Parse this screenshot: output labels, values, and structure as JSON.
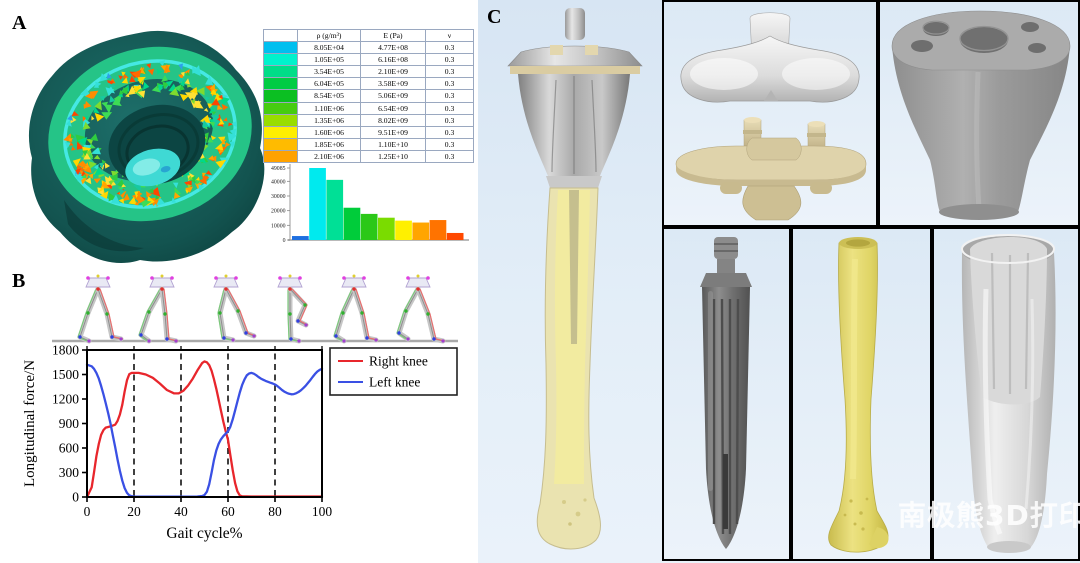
{
  "panels": {
    "a": "A",
    "b": "B",
    "c": "C"
  },
  "material_table": {
    "headers": {
      "swatch": "",
      "density": "ρ (g/m³)",
      "modulus": "E (Pa)",
      "poisson": "ν"
    },
    "rows": [
      {
        "color": "#00BFEF",
        "density": "8.05E+04",
        "modulus": "4.77E+08",
        "poisson": "0.3"
      },
      {
        "color": "#00F2CC",
        "density": "1.05E+05",
        "modulus": "6.16E+08",
        "poisson": "0.3"
      },
      {
        "color": "#00DD88",
        "density": "3.54E+05",
        "modulus": "2.10E+09",
        "poisson": "0.3"
      },
      {
        "color": "#00CC44",
        "density": "6.04E+05",
        "modulus": "3.58E+09",
        "poisson": "0.3"
      },
      {
        "color": "#0BBF22",
        "density": "8.54E+05",
        "modulus": "5.06E+09",
        "poisson": "0.3"
      },
      {
        "color": "#46CC11",
        "density": "1.10E+06",
        "modulus": "6.54E+09",
        "poisson": "0.3"
      },
      {
        "color": "#99DD00",
        "density": "1.35E+06",
        "modulus": "8.02E+09",
        "poisson": "0.3"
      },
      {
        "color": "#FFEE00",
        "density": "1.60E+06",
        "modulus": "9.51E+09",
        "poisson": "0.3"
      },
      {
        "color": "#FFBB00",
        "density": "1.85E+06",
        "modulus": "1.10E+10",
        "poisson": "0.3"
      },
      {
        "color": "#FFA200",
        "density": "2.10E+06",
        "modulus": "1.25E+10",
        "poisson": "0.3"
      }
    ]
  },
  "chart_data": [
    {
      "id": "bone-density-histogram",
      "type": "bar",
      "title": "",
      "xlabel": "",
      "ylabel": "",
      "values": [
        2700,
        49085,
        41000,
        22000,
        17800,
        15200,
        13200,
        11900,
        13600,
        4800
      ],
      "bar_colors": [
        "#1E6FE0",
        "#00EAEE",
        "#00E096",
        "#00CC3A",
        "#2BC818",
        "#7ADC00",
        "#FFF000",
        "#FFA500",
        "#FF7300",
        "#FF4800"
      ],
      "yticks": [
        0,
        10000,
        20000,
        30000,
        40000,
        49085
      ],
      "ylim": [
        0,
        49085
      ],
      "grid": false
    },
    {
      "id": "knee-longitudinal-force",
      "type": "line",
      "title": "",
      "xlabel": "Gait cycle%",
      "ylabel": "Longitudinal force/N",
      "xlim": [
        0,
        100
      ],
      "ylim": [
        0,
        1800
      ],
      "xticks": [
        0,
        20,
        40,
        60,
        80,
        100
      ],
      "yticks": [
        0,
        300,
        600,
        900,
        1200,
        1500,
        1800
      ],
      "dashed_vlines_x": [
        20,
        40,
        60,
        80
      ],
      "legend_position": "top-right",
      "series": [
        {
          "name": "Right knee",
          "color": "#E8262C",
          "points": [
            [
              0,
              0
            ],
            [
              2,
              120
            ],
            [
              3,
              300
            ],
            [
              4,
              500
            ],
            [
              5,
              650
            ],
            [
              6,
              760
            ],
            [
              7,
              820
            ],
            [
              8,
              850
            ],
            [
              10,
              865
            ],
            [
              12,
              885
            ],
            [
              13,
              930
            ],
            [
              14,
              1010
            ],
            [
              15,
              1130
            ],
            [
              16,
              1290
            ],
            [
              17,
              1430
            ],
            [
              18,
              1505
            ],
            [
              19,
              1520
            ],
            [
              22,
              1520
            ],
            [
              25,
              1500
            ],
            [
              28,
              1460
            ],
            [
              31,
              1390
            ],
            [
              34,
              1310
            ],
            [
              37,
              1270
            ],
            [
              39,
              1268
            ],
            [
              41,
              1300
            ],
            [
              43,
              1365
            ],
            [
              45,
              1450
            ],
            [
              47,
              1550
            ],
            [
              49,
              1640
            ],
            [
              50,
              1660
            ],
            [
              51,
              1650
            ],
            [
              52,
              1615
            ],
            [
              53,
              1545
            ],
            [
              54,
              1445
            ],
            [
              55,
              1325
            ],
            [
              56,
              1195
            ],
            [
              57,
              1060
            ],
            [
              58,
              925
            ],
            [
              59,
              805
            ],
            [
              60,
              700
            ],
            [
              61,
              515
            ],
            [
              62,
              330
            ],
            [
              63,
              170
            ],
            [
              64,
              70
            ],
            [
              65,
              20
            ],
            [
              66,
              8
            ],
            [
              70,
              6
            ],
            [
              80,
              6
            ],
            [
              90,
              6
            ],
            [
              100,
              6
            ]
          ]
        },
        {
          "name": "Left knee",
          "color": "#3A50E4",
          "points": [
            [
              0,
              1620
            ],
            [
              2,
              1600
            ],
            [
              3,
              1570
            ],
            [
              4,
              1520
            ],
            [
              5,
              1450
            ],
            [
              6,
              1360
            ],
            [
              7,
              1255
            ],
            [
              8,
              1145
            ],
            [
              9,
              1025
            ],
            [
              10,
              900
            ],
            [
              11,
              755
            ],
            [
              12,
              610
            ],
            [
              13,
              460
            ],
            [
              14,
              320
            ],
            [
              15,
              200
            ],
            [
              16,
              110
            ],
            [
              17,
              50
            ],
            [
              18,
              20
            ],
            [
              19,
              10
            ],
            [
              20,
              6
            ],
            [
              30,
              5
            ],
            [
              40,
              5
            ],
            [
              47,
              6
            ],
            [
              49,
              12
            ],
            [
              50,
              25
            ],
            [
              51,
              65
            ],
            [
              52,
              155
            ],
            [
              53,
              300
            ],
            [
              54,
              450
            ],
            [
              55,
              570
            ],
            [
              56,
              650
            ],
            [
              57,
              705
            ],
            [
              58,
              745
            ],
            [
              59,
              775
            ],
            [
              60,
              805
            ],
            [
              61,
              860
            ],
            [
              62,
              950
            ],
            [
              63,
              1060
            ],
            [
              64,
              1170
            ],
            [
              65,
              1280
            ],
            [
              66,
              1370
            ],
            [
              67,
              1440
            ],
            [
              68,
              1490
            ],
            [
              69,
              1512
            ],
            [
              70,
              1520
            ],
            [
              71,
              1510
            ],
            [
              72,
              1492
            ],
            [
              73,
              1470
            ],
            [
              74,
              1450
            ],
            [
              75,
              1435
            ],
            [
              76,
              1422
            ],
            [
              77,
              1410
            ],
            [
              78,
              1400
            ],
            [
              79,
              1390
            ],
            [
              80,
              1378
            ],
            [
              81,
              1358
            ],
            [
              82,
              1335
            ],
            [
              83,
              1310
            ],
            [
              84,
              1290
            ],
            [
              85,
              1275
            ],
            [
              86,
              1264
            ],
            [
              87,
              1258
            ],
            [
              88,
              1260
            ],
            [
              89,
              1270
            ],
            [
              90,
              1286
            ],
            [
              91,
              1306
            ],
            [
              92,
              1332
            ],
            [
              93,
              1362
            ],
            [
              94,
              1396
            ],
            [
              95,
              1432
            ],
            [
              96,
              1470
            ],
            [
              97,
              1505
            ],
            [
              98,
              1535
            ],
            [
              99,
              1556
            ],
            [
              100,
              1570
            ]
          ]
        }
      ]
    }
  ],
  "watermark": {
    "text": "南极熊3D打印",
    "color": "#FFFFFF"
  },
  "colors": {
    "panel_c_background": "#DCE9F5",
    "grid_border": "#000000",
    "right_knee_line": "#E8262C",
    "left_knee_line": "#3A50E4"
  }
}
